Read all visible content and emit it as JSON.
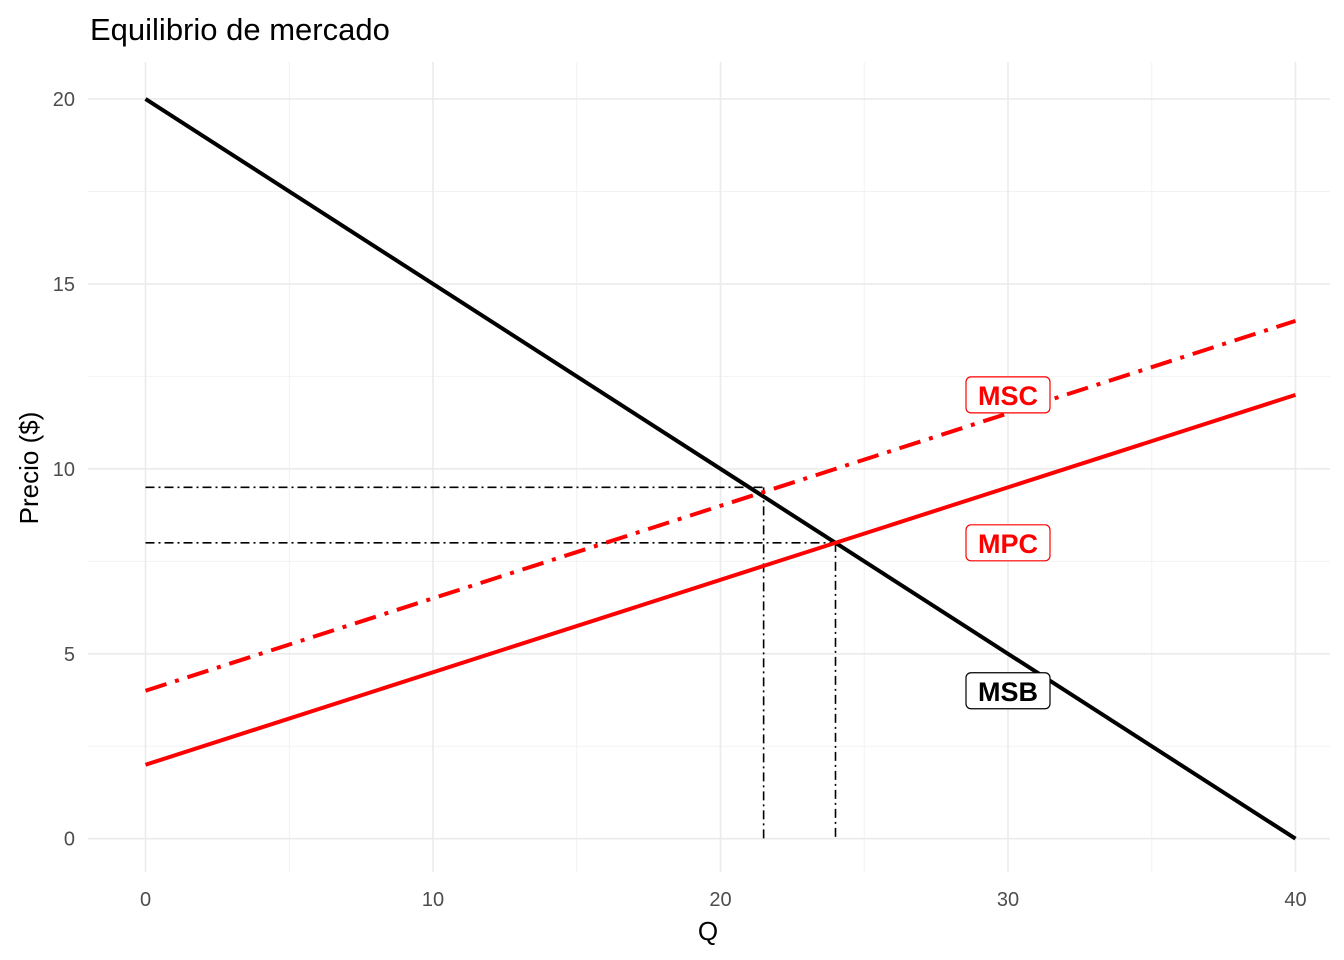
{
  "chart_data": {
    "type": "line",
    "title": "Equilibrio de mercado",
    "xlabel": "Q",
    "ylabel": "Precio ($)",
    "xlim": [
      -2,
      41.2
    ],
    "ylim": [
      -0.9,
      21.0
    ],
    "x_ticks": [
      0,
      10,
      20,
      30,
      40
    ],
    "y_ticks": [
      0,
      5,
      10,
      15,
      20
    ],
    "x_minor": [
      5,
      15,
      25,
      35
    ],
    "y_minor": [
      2.5,
      7.5,
      12.5,
      17.5
    ],
    "grid": true,
    "series": [
      {
        "name": "MSB",
        "points": [
          [
            0,
            20
          ],
          [
            40,
            0
          ]
        ],
        "color": "#000000",
        "dash": "solid"
      },
      {
        "name": "MPC",
        "points": [
          [
            0,
            2
          ],
          [
            40,
            12
          ]
        ],
        "color": "#ff0000",
        "dash": "solid"
      },
      {
        "name": "MSC",
        "points": [
          [
            0,
            4
          ],
          [
            40,
            14
          ]
        ],
        "color": "#ff0000",
        "dash": "dashdot"
      }
    ],
    "labels": [
      {
        "text": "MSC",
        "x": 30,
        "y": 12,
        "color": "#ff0000"
      },
      {
        "text": "MPC",
        "x": 30,
        "y": 8,
        "color": "#ff0000"
      },
      {
        "text": "MSB",
        "x": 30,
        "y": 4,
        "color": "#000000"
      }
    ],
    "reference_lines": [
      {
        "from": [
          0,
          9.5
        ],
        "to": [
          21.5,
          9.5
        ]
      },
      {
        "from": [
          21.5,
          9.5
        ],
        "to": [
          21.5,
          0
        ]
      },
      {
        "from": [
          0,
          8
        ],
        "to": [
          24,
          8
        ]
      },
      {
        "from": [
          24,
          8
        ],
        "to": [
          24,
          0
        ]
      }
    ]
  }
}
